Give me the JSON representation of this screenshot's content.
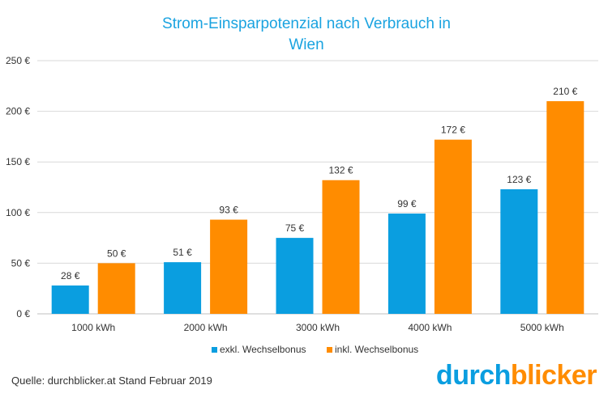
{
  "chart_data": {
    "type": "bar",
    "title_line1": "Strom-Einsparpotenzial  nach Verbrauch in",
    "title_line2": "Wien",
    "categories": [
      "1000 kWh",
      "2000 kWh",
      "3000 kWh",
      "4000 kWh",
      "5000 kWh"
    ],
    "series": [
      {
        "name": "exkl. Wechselbonus",
        "color": "#0a9ee0",
        "values": [
          28,
          51,
          75,
          99,
          123
        ]
      },
      {
        "name": "inkl. Wechselbonus",
        "color": "#ff8c00",
        "values": [
          50,
          93,
          132,
          172,
          210
        ]
      }
    ],
    "unit_suffix": " €",
    "ylim": [
      0,
      250
    ],
    "yticks": [
      0,
      50,
      100,
      150,
      200,
      250
    ],
    "grid": true,
    "legend_position": "bottom",
    "xlabel": "",
    "ylabel": ""
  },
  "source_text": "Quelle: durchblicker.at Stand Februar 2019",
  "logo": {
    "part1": "durch",
    "part2": "blicker",
    "color1": "#0a9ee0",
    "color2": "#ff8c00"
  }
}
